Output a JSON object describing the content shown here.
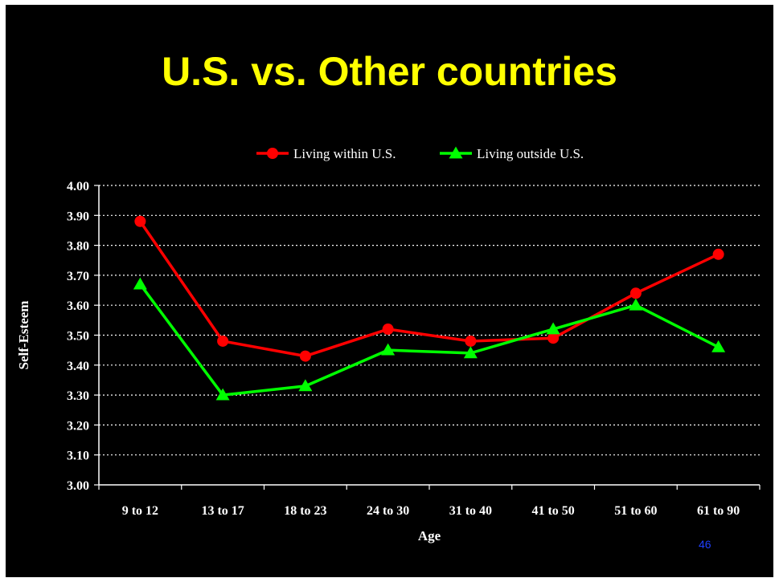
{
  "slide": {
    "title": "U.S. vs. Other countries",
    "page_number": "46"
  },
  "colors": {
    "background": "#000000",
    "title": "#ffff00",
    "series_1": "#ff0000",
    "series_2": "#00ff00",
    "text": "#ffffff"
  },
  "chart_data": {
    "type": "line",
    "title": "",
    "xlabel": "Age",
    "ylabel": "Self-Esteem",
    "categories": [
      "9 to 12",
      "13 to 17",
      "18 to 23",
      "24 to 30",
      "31 to 40",
      "41 to 50",
      "51 to 60",
      "61 to 90"
    ],
    "ylim": [
      3.0,
      4.0
    ],
    "yticks": [
      "3.00",
      "3.10",
      "3.20",
      "3.30",
      "3.40",
      "3.50",
      "3.60",
      "3.70",
      "3.80",
      "3.90",
      "4.00"
    ],
    "grid": "horizontal dotted",
    "legend_position": "top",
    "series": [
      {
        "name": "Living within U.S.",
        "color": "#ff0000",
        "marker": "circle",
        "values": [
          3.88,
          3.48,
          3.43,
          3.52,
          3.48,
          3.49,
          3.64,
          3.77
        ]
      },
      {
        "name": "Living outside U.S.",
        "color": "#00ff00",
        "marker": "triangle",
        "values": [
          3.67,
          3.3,
          3.33,
          3.45,
          3.44,
          3.52,
          3.6,
          3.46
        ]
      }
    ]
  }
}
